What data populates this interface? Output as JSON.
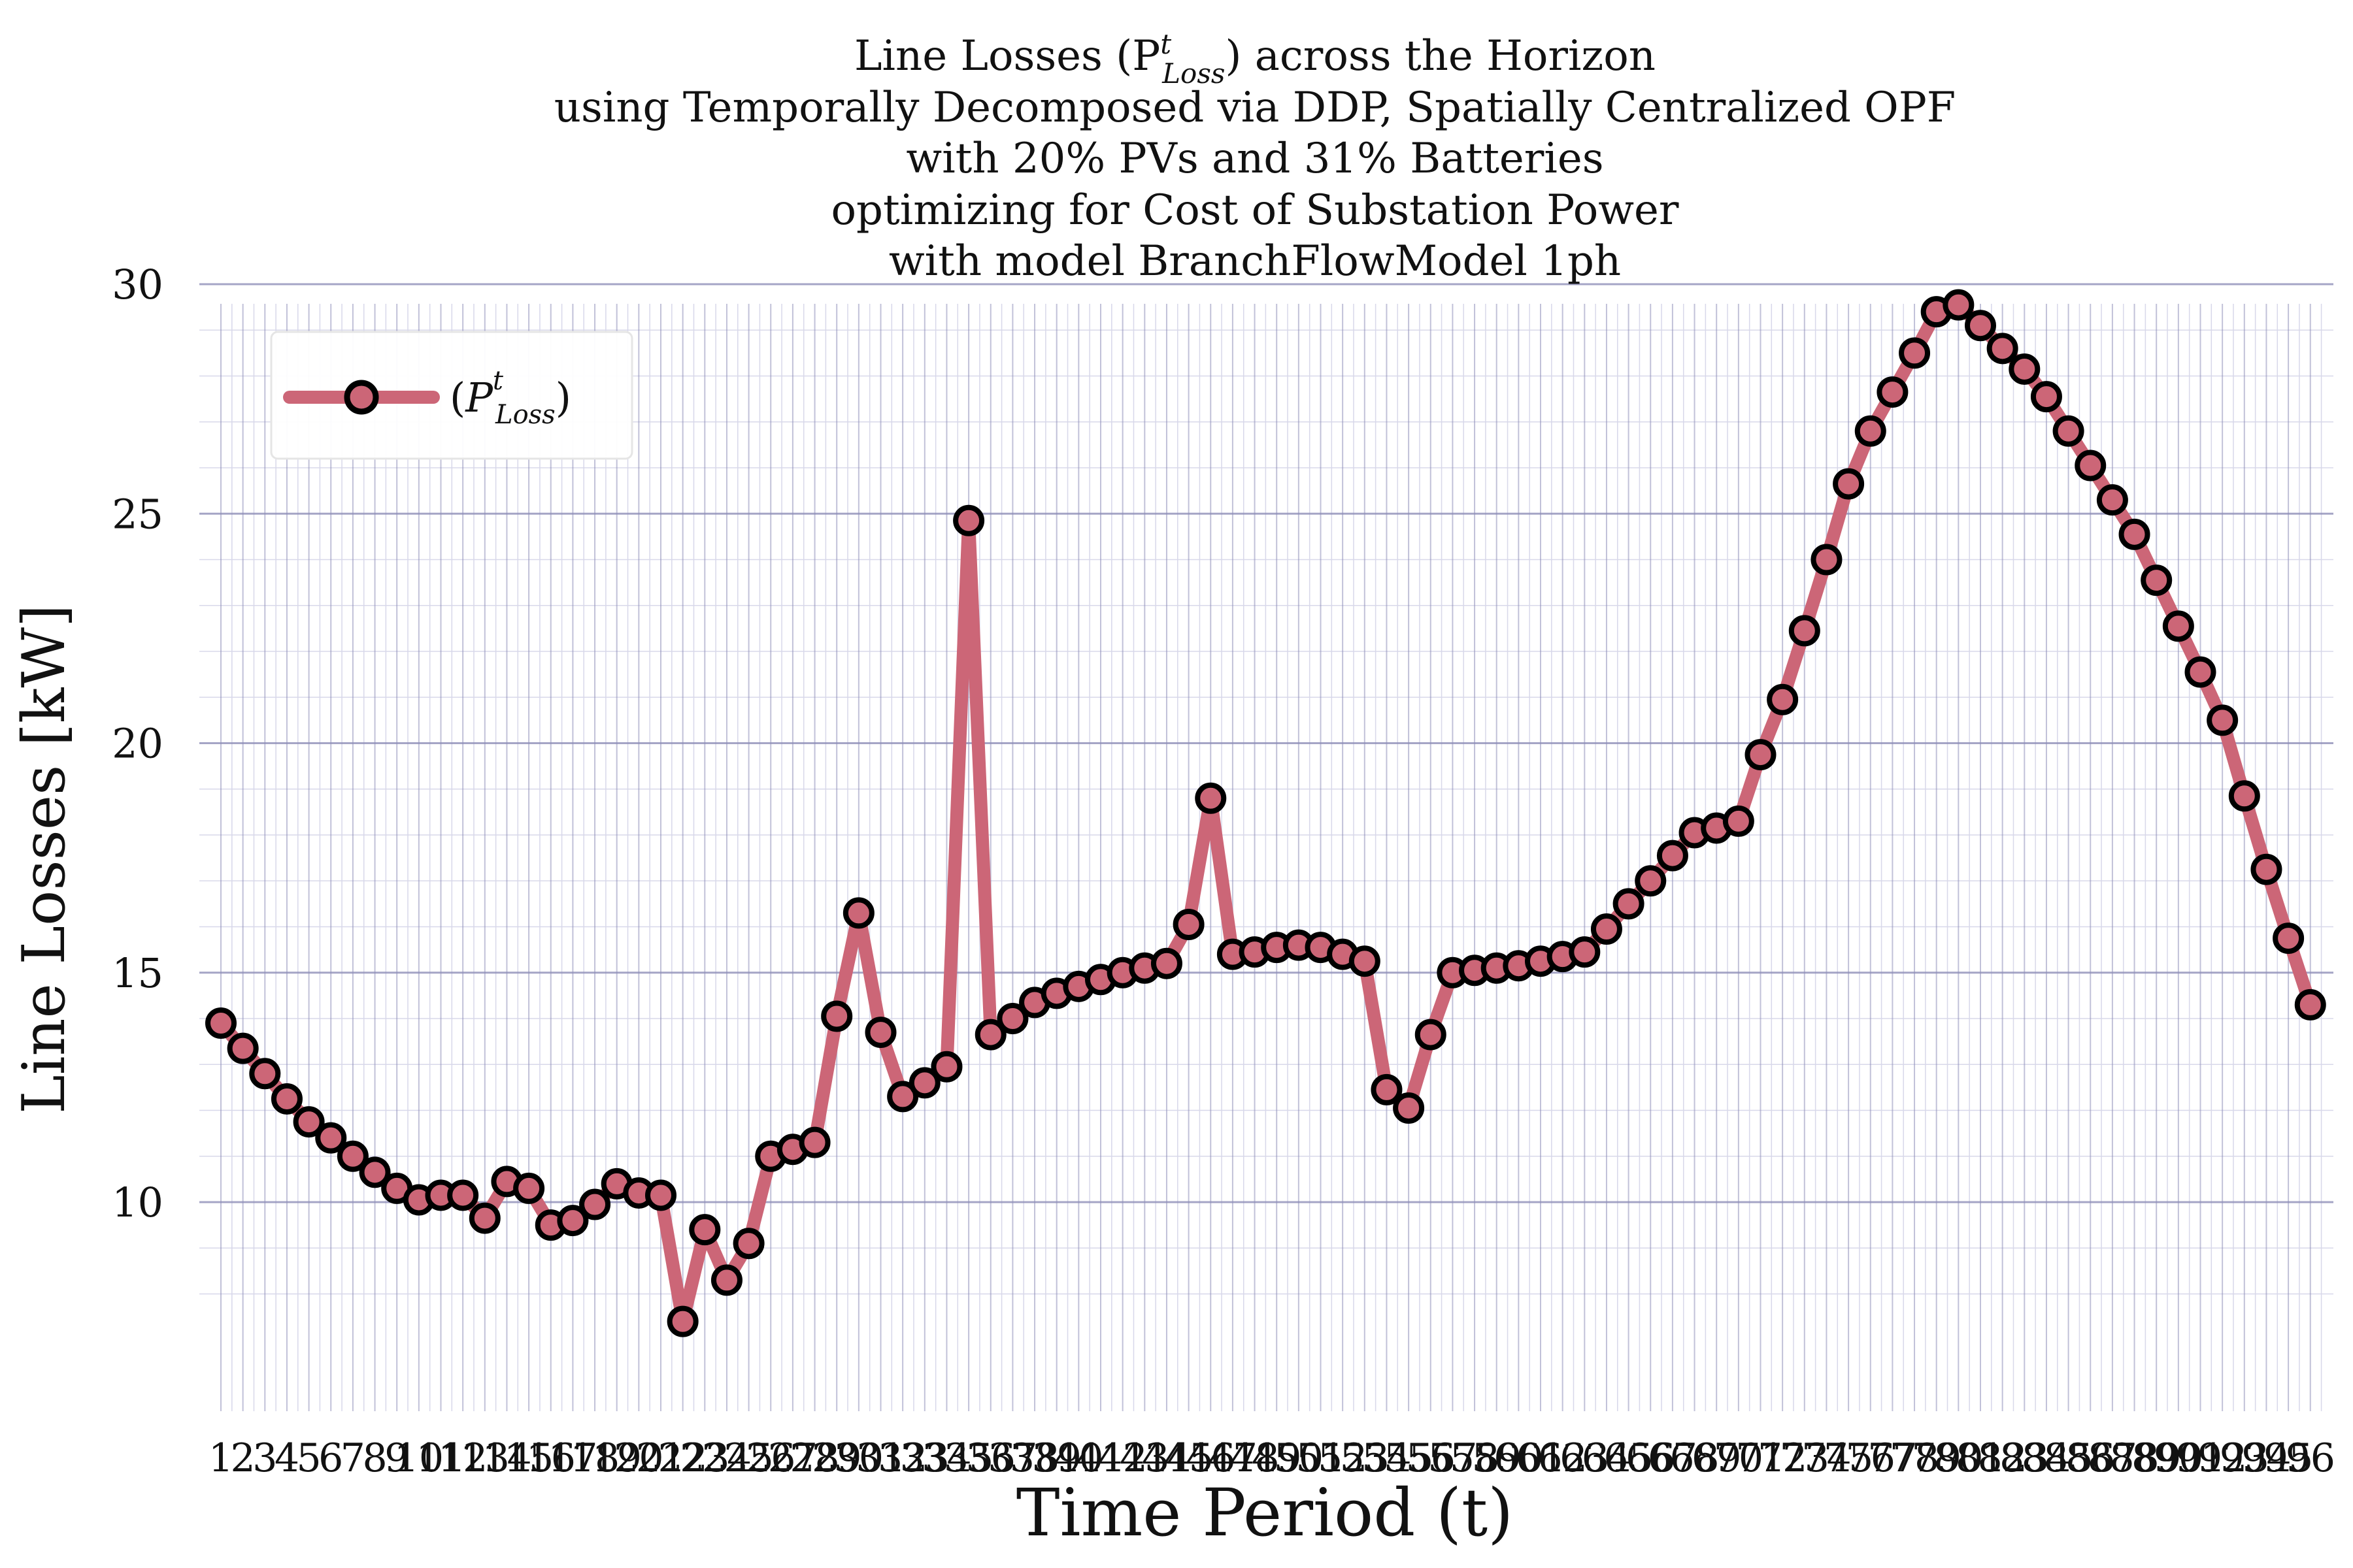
{
  "chart_data": {
    "type": "line",
    "title": [
      "Line Losses (P",
      "using Temporally Decomposed via DDP, Spatially Centralized OPF",
      "with 20% PVs and 31% Batteries",
      "optimizing for Cost of Substation Power",
      "with model BranchFlowModel 1ph"
    ],
    "title_loss_symbol": {
      "base": "P",
      "superscript": "t",
      "subscript": "Loss",
      "suffix": ") across the Horizon"
    },
    "xlabel": "Time Period (t)",
    "ylabel": "Line Losses [kW]",
    "ylim": [
      7.3,
      30.8
    ],
    "yticks": [
      10,
      15,
      20,
      25,
      30
    ],
    "grid": true,
    "legend": {
      "position": "top-left",
      "entries": [
        {
          "prefix": "(",
          "base": "P",
          "superscript": "t",
          "subscript": "Loss",
          "suffix": ")"
        }
      ]
    },
    "colors": {
      "line": "#cc6677",
      "marker_edge": "#000000",
      "major_grid": "#8e8eb8",
      "minor_grid": "#d8d8ea"
    },
    "x": [
      1,
      2,
      3,
      4,
      5,
      6,
      7,
      8,
      9,
      10,
      11,
      12,
      13,
      14,
      15,
      16,
      17,
      18,
      19,
      20,
      21,
      22,
      23,
      24,
      25,
      26,
      27,
      28,
      29,
      30,
      31,
      32,
      33,
      34,
      35,
      36,
      37,
      38,
      39,
      40,
      41,
      42,
      43,
      44,
      45,
      46,
      47,
      48,
      49,
      50,
      51,
      52,
      53,
      54,
      55,
      56,
      57,
      58,
      59,
      60,
      61,
      62,
      63,
      64,
      65,
      66,
      67,
      68,
      69,
      70,
      71,
      72,
      73,
      74,
      75,
      76,
      77,
      78,
      79,
      80,
      81,
      82,
      83,
      84,
      85,
      86,
      87,
      88,
      89,
      90,
      91,
      92,
      93,
      94,
      95,
      96
    ],
    "series": [
      {
        "name": "(P_Loss^t)",
        "values": [
          13.9,
          13.35,
          12.8,
          12.25,
          11.75,
          11.4,
          11.0,
          10.65,
          10.3,
          10.05,
          10.15,
          10.15,
          9.65,
          10.45,
          10.3,
          9.5,
          9.6,
          9.95,
          10.4,
          10.2,
          10.15,
          7.4,
          9.4,
          8.3,
          9.1,
          11.0,
          11.15,
          11.3,
          14.05,
          16.3,
          13.7,
          12.3,
          12.6,
          12.95,
          24.85,
          13.65,
          14.0,
          14.35,
          14.55,
          14.7,
          14.85,
          15.0,
          15.1,
          15.2,
          16.05,
          18.8,
          15.4,
          15.45,
          15.55,
          15.6,
          15.55,
          15.4,
          15.25,
          12.45,
          12.05,
          13.65,
          15.0,
          15.05,
          15.1,
          15.15,
          15.25,
          15.35,
          15.45,
          15.95,
          16.5,
          17.0,
          17.55,
          18.05,
          18.15,
          18.3,
          19.75,
          20.95,
          22.45,
          24.0,
          25.65,
          26.8,
          27.65,
          28.5,
          29.4,
          29.55,
          29.1,
          28.6,
          28.15,
          27.55,
          26.8,
          26.05,
          25.3,
          24.55,
          23.55,
          22.55,
          21.55,
          20.5,
          18.85,
          17.25,
          15.75,
          14.3
        ]
      }
    ]
  }
}
